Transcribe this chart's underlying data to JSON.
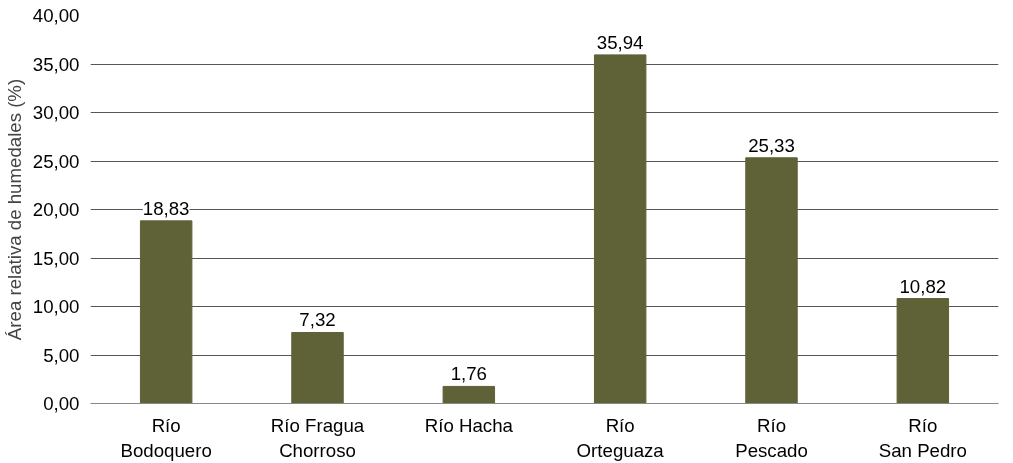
{
  "chart_data": {
    "type": "bar",
    "ylabel": "Área relativa de humedales (%)",
    "categories": [
      "Río\nBodoquero",
      "Río Fragua\nChorroso",
      "Río Hacha",
      "Río\nOrteguaza",
      "Río\nPescado",
      "Río\nSan Pedro"
    ],
    "values": [
      18.83,
      7.32,
      1.76,
      35.94,
      25.33,
      10.82
    ],
    "value_labels": [
      "18,83",
      "7,32",
      "1,76",
      "35,94",
      "25,33",
      "10,82"
    ],
    "color": "#5f6137",
    "ylim": [
      0,
      40
    ],
    "yticks": [
      {
        "value": 0,
        "label": "0,00"
      },
      {
        "value": 5,
        "label": "5,00"
      },
      {
        "value": 10,
        "label": "10,00"
      },
      {
        "value": 15,
        "label": "15,00"
      },
      {
        "value": 20,
        "label": "20,00"
      },
      {
        "value": 25,
        "label": "25,00"
      },
      {
        "value": 30,
        "label": "30,00"
      },
      {
        "value": 35,
        "label": "35,00"
      },
      {
        "value": 40,
        "label": "40,00"
      }
    ],
    "grid": "y"
  }
}
